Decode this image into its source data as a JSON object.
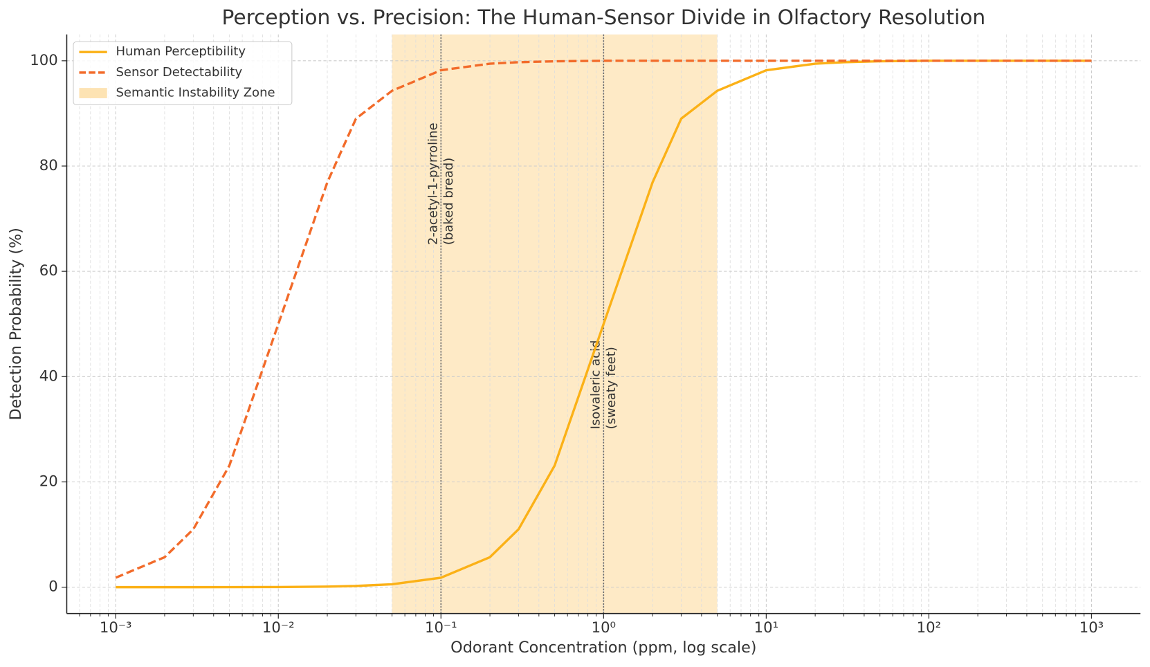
{
  "chart_data": {
    "type": "line",
    "title": "Perception vs. Precision: The Human-Sensor Divide in Olfactory Resolution",
    "xlabel": "Odorant Concentration (ppm, log scale)",
    "ylabel": "Detection Probability (%)",
    "xscale": "log",
    "grid": true,
    "legend": "upper left",
    "x": [
      0.001,
      0.002,
      0.003,
      0.005,
      0.01,
      0.02,
      0.03,
      0.05,
      0.1,
      0.2,
      0.3,
      0.5,
      1,
      2,
      3,
      5,
      10,
      20,
      30,
      50,
      100,
      1000
    ],
    "series": [
      {
        "name": "Human Perceptibility",
        "color": "#fbb117",
        "style": "solid",
        "values": [
          0,
          0,
          0,
          0.01,
          0.03,
          0.11,
          0.23,
          0.55,
          1.8,
          5.7,
          11.0,
          23.1,
          50,
          76.9,
          89.0,
          94.3,
          98.2,
          99.45,
          99.73,
          99.9,
          100,
          100
        ]
      },
      {
        "name": "Sensor Detectability",
        "color": "#f26b2a",
        "style": "dashed",
        "values": [
          1.8,
          5.7,
          11.0,
          23.1,
          50,
          76.9,
          89.0,
          94.3,
          98.2,
          99.45,
          99.73,
          99.9,
          100,
          100,
          100,
          100,
          100,
          100,
          100,
          100,
          100,
          100
        ]
      }
    ],
    "zone": {
      "label": "Semantic Instability Zone",
      "x": [
        0.05,
        5
      ],
      "color": "#fde3b3"
    },
    "annotations": [
      {
        "x": 0.1,
        "y": 65,
        "lines": [
          "2-acetyl-1-pyrroline",
          "(baked bread)"
        ]
      },
      {
        "x": 1,
        "y": 30,
        "lines": [
          "Isovaleric acid",
          "(sweaty feet)"
        ]
      }
    ],
    "xlim": [
      0.0005,
      2000
    ],
    "ylim": [
      -5,
      105
    ],
    "xticks": [
      {
        "value": 0.001,
        "label": "10⁻³"
      },
      {
        "value": 0.01,
        "label": "10⁻²"
      },
      {
        "value": 0.1,
        "label": "10⁻¹"
      },
      {
        "value": 1,
        "label": "10⁰"
      },
      {
        "value": 10,
        "label": "10¹"
      },
      {
        "value": 100,
        "label": "10²"
      },
      {
        "value": 1000,
        "label": "10³"
      }
    ],
    "xticks_minor": [
      0.0006,
      0.0007,
      0.0008,
      0.0009,
      0.002,
      0.003,
      0.004,
      0.005,
      0.006,
      0.007,
      0.008,
      0.009,
      0.02,
      0.03,
      0.04,
      0.05,
      0.06,
      0.07,
      0.08,
      0.09,
      0.2,
      0.3,
      0.4,
      0.5,
      0.6,
      0.7,
      0.8,
      0.9,
      2,
      3,
      4,
      5,
      6,
      7,
      8,
      9,
      20,
      30,
      40,
      50,
      60,
      70,
      80,
      90,
      200,
      300,
      400,
      500,
      600,
      700,
      800,
      900
    ],
    "yticks": [
      0,
      20,
      40,
      60,
      80,
      100
    ]
  }
}
